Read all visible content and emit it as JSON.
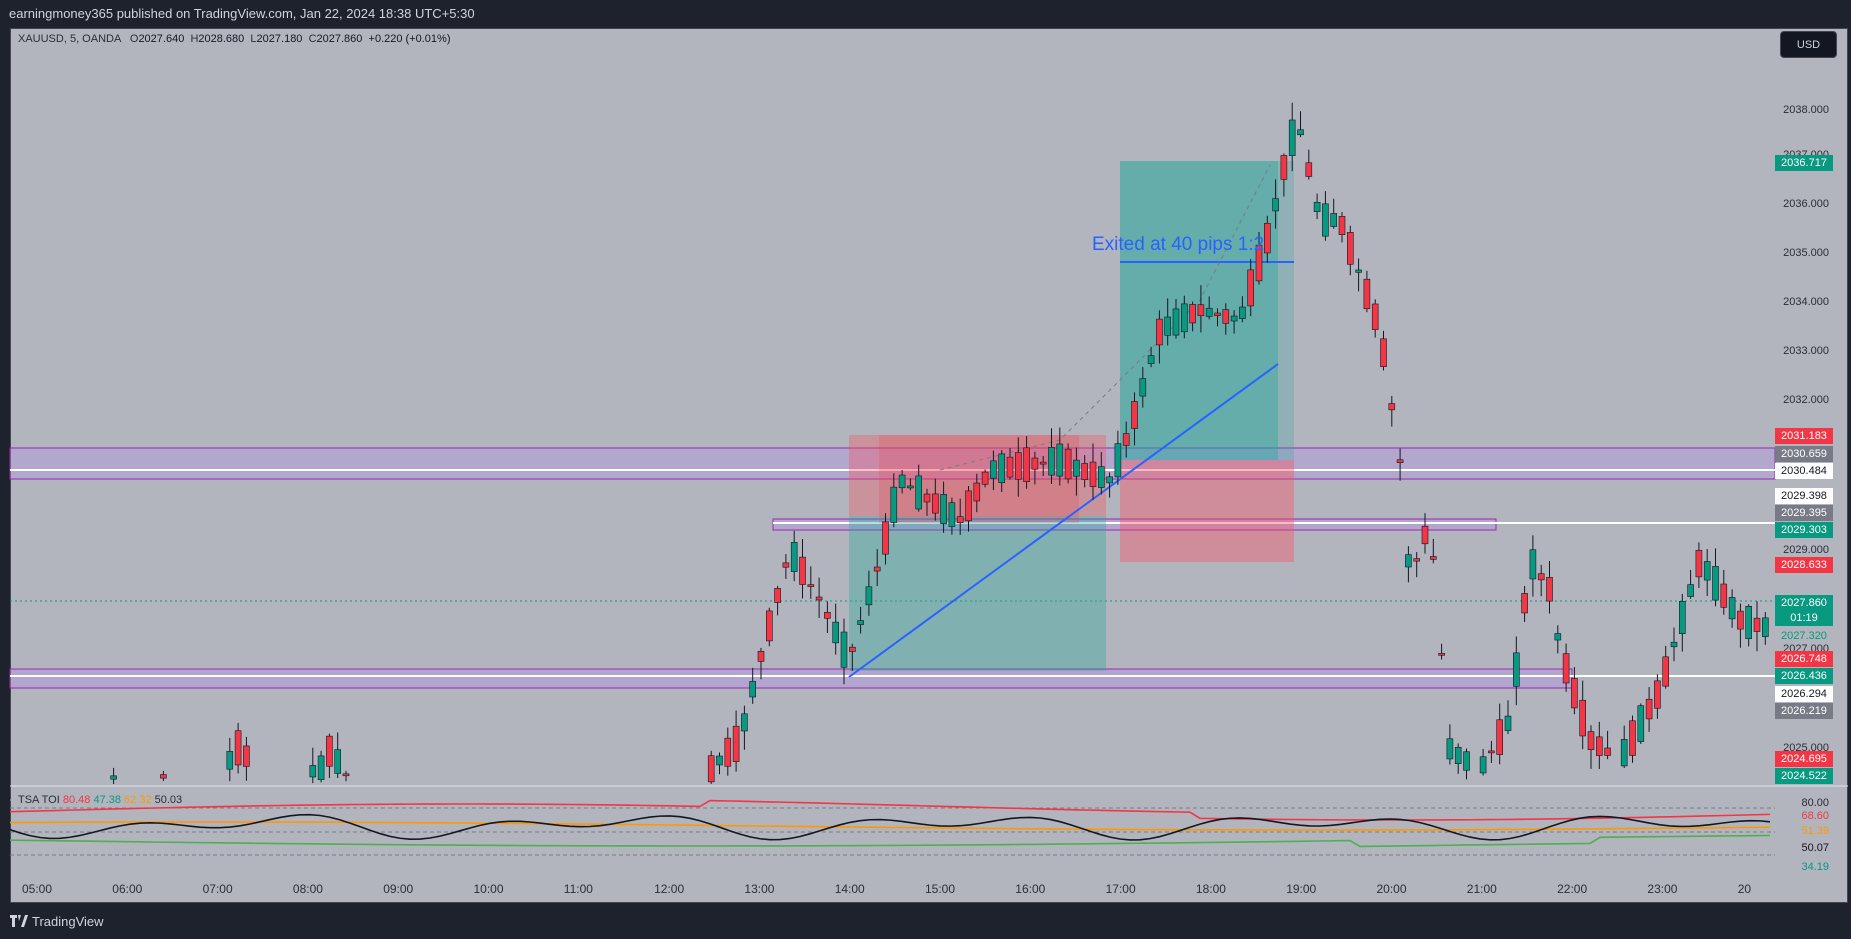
{
  "header": {
    "published_text": "earningmoney365 published on TradingView.com, Jan 22, 2024 18:38 UTC+5:30"
  },
  "legend": {
    "symbol": "XAUUSD, 5, OANDA",
    "o_label": "O",
    "o": "2027.640",
    "h_label": "H",
    "h": "2028.680",
    "l_label": "L",
    "l": "2027.180",
    "c_label": "C",
    "c": "2027.860",
    "change": "+0.220 (+0.01%)"
  },
  "currency_button": "USD",
  "price_axis": [
    "2038.000",
    "2037.000",
    "2036.000",
    "2035.000",
    "2034.000",
    "2033.000",
    "2032.000",
    "2029.000",
    "2028.000",
    "2027.000",
    "2025.000"
  ],
  "price_labels": [
    {
      "text": "2036.717",
      "color": "#089981",
      "fg": "#ffffff"
    },
    {
      "text": "2031.183",
      "color": "#f23645",
      "fg": "#ffffff"
    },
    {
      "text": "2030.659",
      "color": "#787b86",
      "fg": "#ffffff"
    },
    {
      "text": "2030.484",
      "color": "#ffffff",
      "fg": "#131722"
    },
    {
      "text": "2029.398",
      "color": "#ffffff",
      "fg": "#131722"
    },
    {
      "text": "2029.395",
      "color": "#787b86",
      "fg": "#ffffff"
    },
    {
      "text": "2029.303",
      "color": "#089981",
      "fg": "#ffffff"
    },
    {
      "text": "2028.633",
      "color": "#f23645",
      "fg": "#ffffff"
    },
    {
      "text": "2027.860",
      "color": "#089981",
      "fg": "#ffffff"
    },
    {
      "text": "01:19",
      "color": "#089981",
      "fg": "#ffffff"
    },
    {
      "text": "2027.320",
      "color": "#b2b5be",
      "fg": "#089981"
    },
    {
      "text": "2026.748",
      "color": "#f23645",
      "fg": "#ffffff"
    },
    {
      "text": "2026.436",
      "color": "#089981",
      "fg": "#ffffff"
    },
    {
      "text": "2026.294",
      "color": "#ffffff",
      "fg": "#131722"
    },
    {
      "text": "2026.219",
      "color": "#787b86",
      "fg": "#ffffff"
    },
    {
      "text": "2024.695",
      "color": "#f23645",
      "fg": "#ffffff"
    },
    {
      "text": "2024.522",
      "color": "#089981",
      "fg": "#ffffff"
    }
  ],
  "time_axis": [
    "05:00",
    "06:00",
    "07:00",
    "08:00",
    "09:00",
    "10:00",
    "11:00",
    "12:00",
    "13:00",
    "14:00",
    "15:00",
    "16:00",
    "17:00",
    "18:00",
    "19:00",
    "20:00",
    "21:00",
    "22:00",
    "23:00",
    "20"
  ],
  "annotation": "Exited at 40 pips 1:2",
  "indicator": {
    "name": "TSA TOI",
    "values": [
      "80.48",
      "47.38",
      "62.32",
      "50.03"
    ],
    "axis": [
      "80.00",
      "68.60",
      "51.39",
      "50.07",
      "34.19"
    ]
  },
  "colors": {
    "up": "#089981",
    "down": "#f23645",
    "accent": "#2962ff",
    "zone": "#9c27b0",
    "long_target": "#26a69a",
    "short_risk": "#f7525f"
  },
  "footer": {
    "brand": "TradingView"
  }
}
